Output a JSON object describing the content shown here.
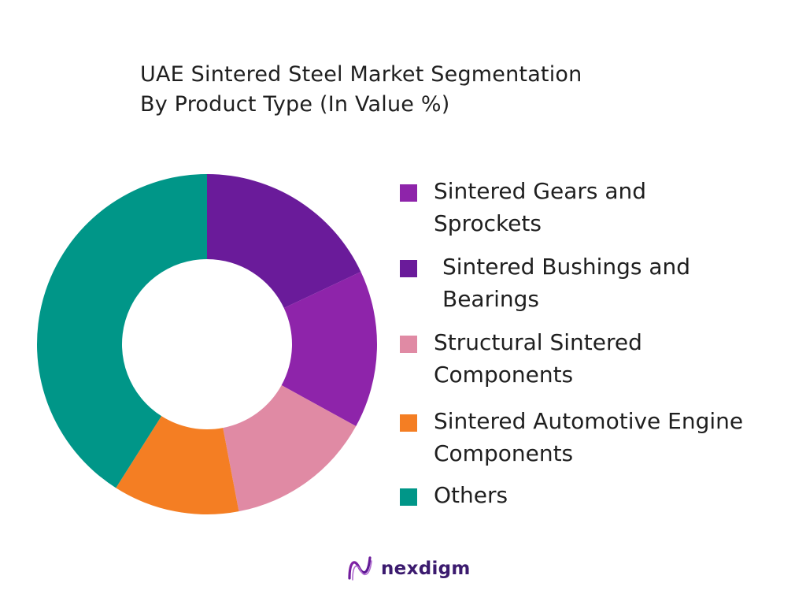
{
  "chart_data": {
    "type": "pie",
    "variant": "donut",
    "title_lines": [
      "UAE Sintered Steel Market Segmentation",
      "By Product Type (In Value %)"
    ],
    "series": [
      {
        "name": "Sintered Gears and Sprockets",
        "value": 15,
        "color": "#8e24aa"
      },
      {
        "name": "Sintered Bushings and Bearings",
        "value": 18,
        "color": "#6a1b9a"
      },
      {
        "name": "Structural Sintered Components",
        "value": 14,
        "color": "#e08aa4"
      },
      {
        "name": "Sintered Automotive Engine Components",
        "value": 12,
        "color": "#f47e23"
      },
      {
        "name": "Others",
        "value": 41,
        "color": "#009688"
      }
    ],
    "draw_order": [
      "Sintered Bushings and Bearings",
      "Sintered Gears and Sprockets",
      "Structural Sintered Components",
      "Sintered Automotive Engine Components",
      "Others"
    ],
    "legend_position": "right"
  },
  "legend": [
    {
      "lines": [
        "Sintered Gears and",
        "Sprockets"
      ],
      "color": "#8e24aa"
    },
    {
      "lines": [
        "Sintered Bushings and",
        "Bearings"
      ],
      "color": "#6a1b9a"
    },
    {
      "lines": [
        "Structural Sintered",
        "Components"
      ],
      "color": "#e08aa4"
    },
    {
      "lines": [
        "Sintered Automotive Engine",
        "Components"
      ],
      "color": "#f47e23"
    },
    {
      "lines": [
        "Others"
      ],
      "color": "#009688"
    }
  ],
  "brand": {
    "name": "nexdigm",
    "color": "#3b1a6e",
    "icon": "nexdigm-logo-icon"
  }
}
